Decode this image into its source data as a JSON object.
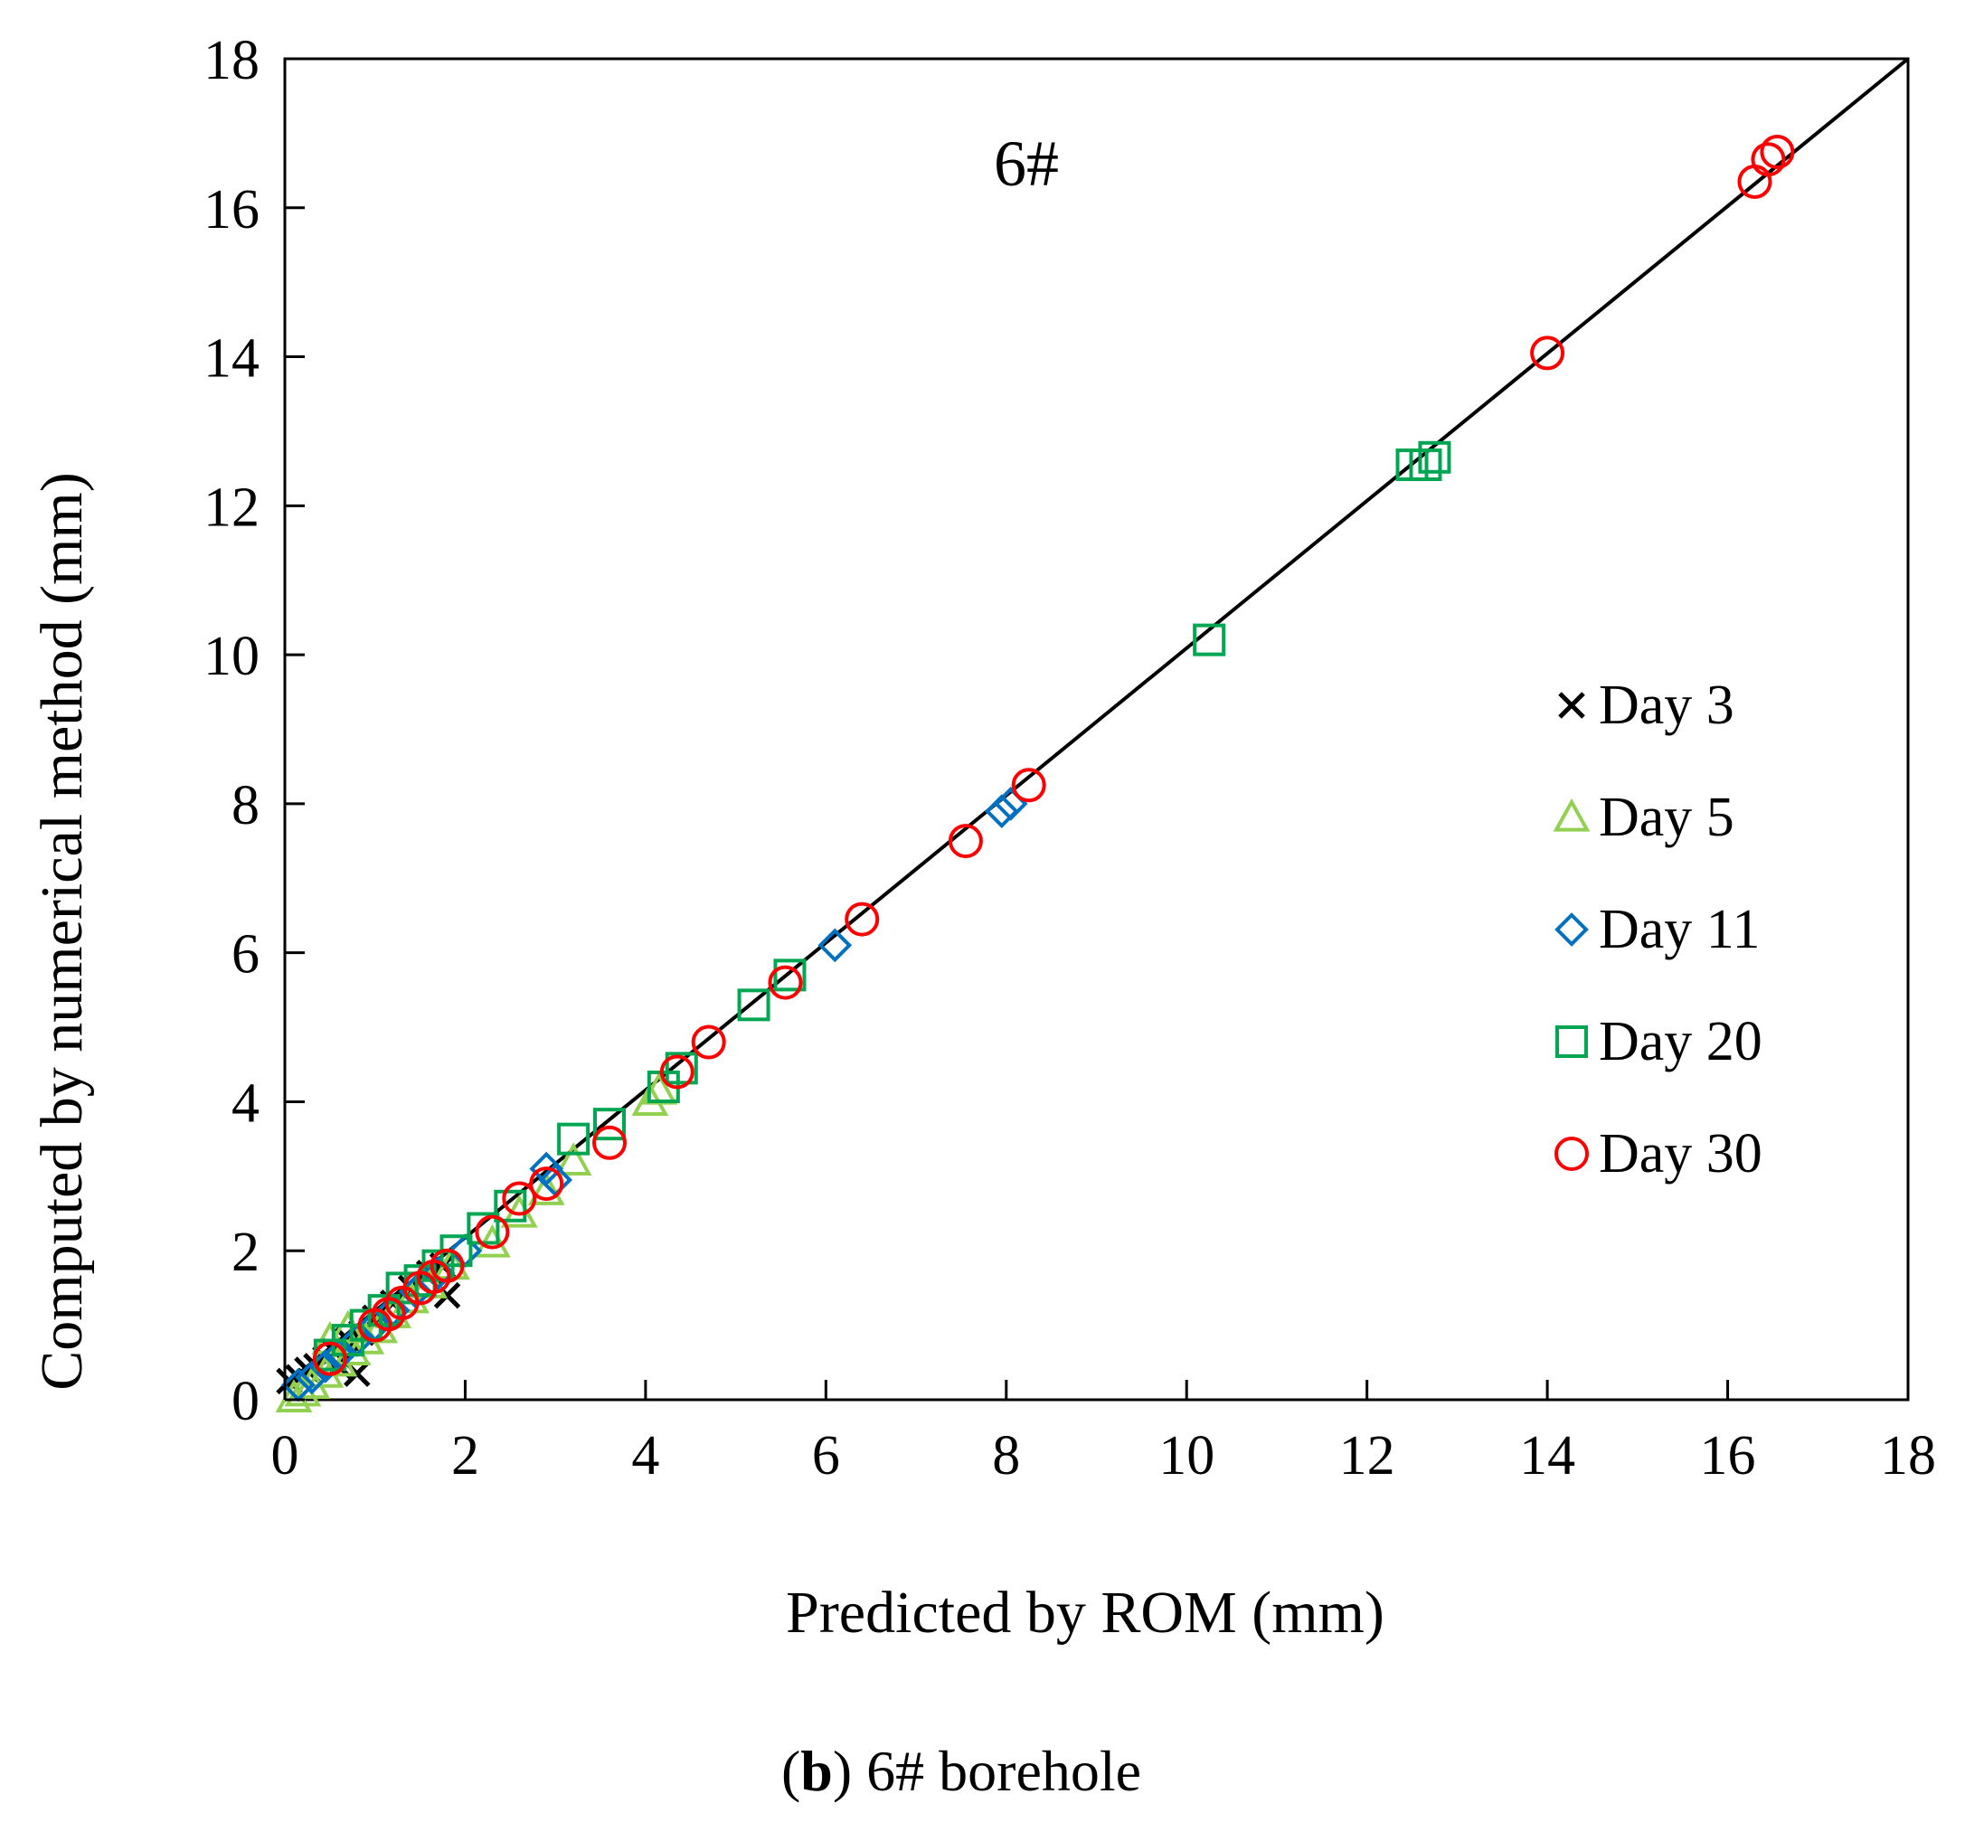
{
  "chart_data": {
    "type": "scatter",
    "title": "",
    "annotation": "6#",
    "caption_letter": "b",
    "caption_rest": ") 6# borehole",
    "caption_open": "(",
    "xlabel": "Predicted by ROM (mm)",
    "ylabel": "Computed by numerical method (mm)",
    "xlim": [
      0,
      18
    ],
    "ylim": [
      0,
      18
    ],
    "xticks": [
      "0",
      "2",
      "4",
      "6",
      "8",
      "10",
      "12",
      "14",
      "16",
      "18"
    ],
    "yticks": [
      "0",
      "2",
      "4",
      "6",
      "8",
      "10",
      "12",
      "14",
      "16",
      "18"
    ],
    "grid": false,
    "legend_position": "right",
    "reference_line": {
      "x": [
        0,
        18
      ],
      "y": [
        0.2,
        18
      ]
    },
    "series": [
      {
        "name": "Day 3",
        "marker": "x",
        "color": "#000000",
        "x": [
          0.05,
          0.15,
          0.25,
          0.35,
          0.45,
          0.55,
          0.7,
          0.85,
          1.0,
          1.2,
          1.4,
          1.6,
          1.75,
          1.8,
          0.8,
          0.6
        ],
        "y": [
          0.25,
          0.3,
          0.4,
          0.45,
          0.55,
          0.65,
          0.8,
          0.9,
          1.1,
          1.3,
          1.5,
          1.7,
          1.8,
          1.4,
          0.35,
          0.45
        ]
      },
      {
        "name": "Day 5",
        "marker": "triangle",
        "color": "#92D050",
        "x": [
          0.1,
          0.2,
          0.3,
          0.45,
          0.6,
          0.75,
          0.9,
          1.05,
          1.2,
          1.4,
          1.6,
          1.85,
          2.3,
          2.6,
          2.9,
          3.2,
          4.05,
          4.15,
          0.5,
          0.7
        ],
        "y": [
          0.02,
          0.1,
          0.2,
          0.35,
          0.5,
          0.65,
          0.8,
          0.95,
          1.15,
          1.35,
          1.55,
          1.8,
          2.1,
          2.5,
          2.8,
          3.2,
          4.0,
          4.15,
          0.8,
          0.95
        ]
      },
      {
        "name": "Day 11",
        "marker": "diamond",
        "color": "#0070C0",
        "x": [
          0.15,
          0.3,
          0.45,
          0.6,
          0.8,
          1.0,
          1.2,
          1.45,
          1.7,
          2.0,
          2.9,
          3.0,
          6.1,
          7.95,
          8.05
        ],
        "y": [
          0.2,
          0.3,
          0.45,
          0.6,
          0.8,
          1.0,
          1.2,
          1.45,
          1.7,
          2.0,
          3.1,
          2.95,
          6.1,
          7.9,
          8.0
        ]
      },
      {
        "name": "Day 20",
        "marker": "square",
        "color": "#00A651",
        "x": [
          0.5,
          0.7,
          0.9,
          1.1,
          1.3,
          1.5,
          1.7,
          1.9,
          2.2,
          2.5,
          3.2,
          3.6,
          4.2,
          4.4,
          5.2,
          5.6,
          10.25,
          12.5,
          12.65,
          12.75
        ],
        "y": [
          0.6,
          0.8,
          1.0,
          1.2,
          1.5,
          1.6,
          1.8,
          2.0,
          2.3,
          2.6,
          3.5,
          3.7,
          4.2,
          4.45,
          5.3,
          5.7,
          10.2,
          12.55,
          12.55,
          12.65
        ]
      },
      {
        "name": "Day 30",
        "marker": "circle",
        "color": "#FF0000",
        "x": [
          0.5,
          1.0,
          1.15,
          1.3,
          1.5,
          1.65,
          1.8,
          2.3,
          2.6,
          2.9,
          3.6,
          4.35,
          4.7,
          5.55,
          6.4,
          7.55,
          8.25,
          14.0,
          16.3,
          16.45,
          16.55
        ],
        "y": [
          0.55,
          1.0,
          1.15,
          1.3,
          1.5,
          1.65,
          1.8,
          2.25,
          2.7,
          2.9,
          3.45,
          4.4,
          4.8,
          5.6,
          6.45,
          7.5,
          8.25,
          14.05,
          16.35,
          16.65,
          16.75
        ]
      }
    ]
  }
}
